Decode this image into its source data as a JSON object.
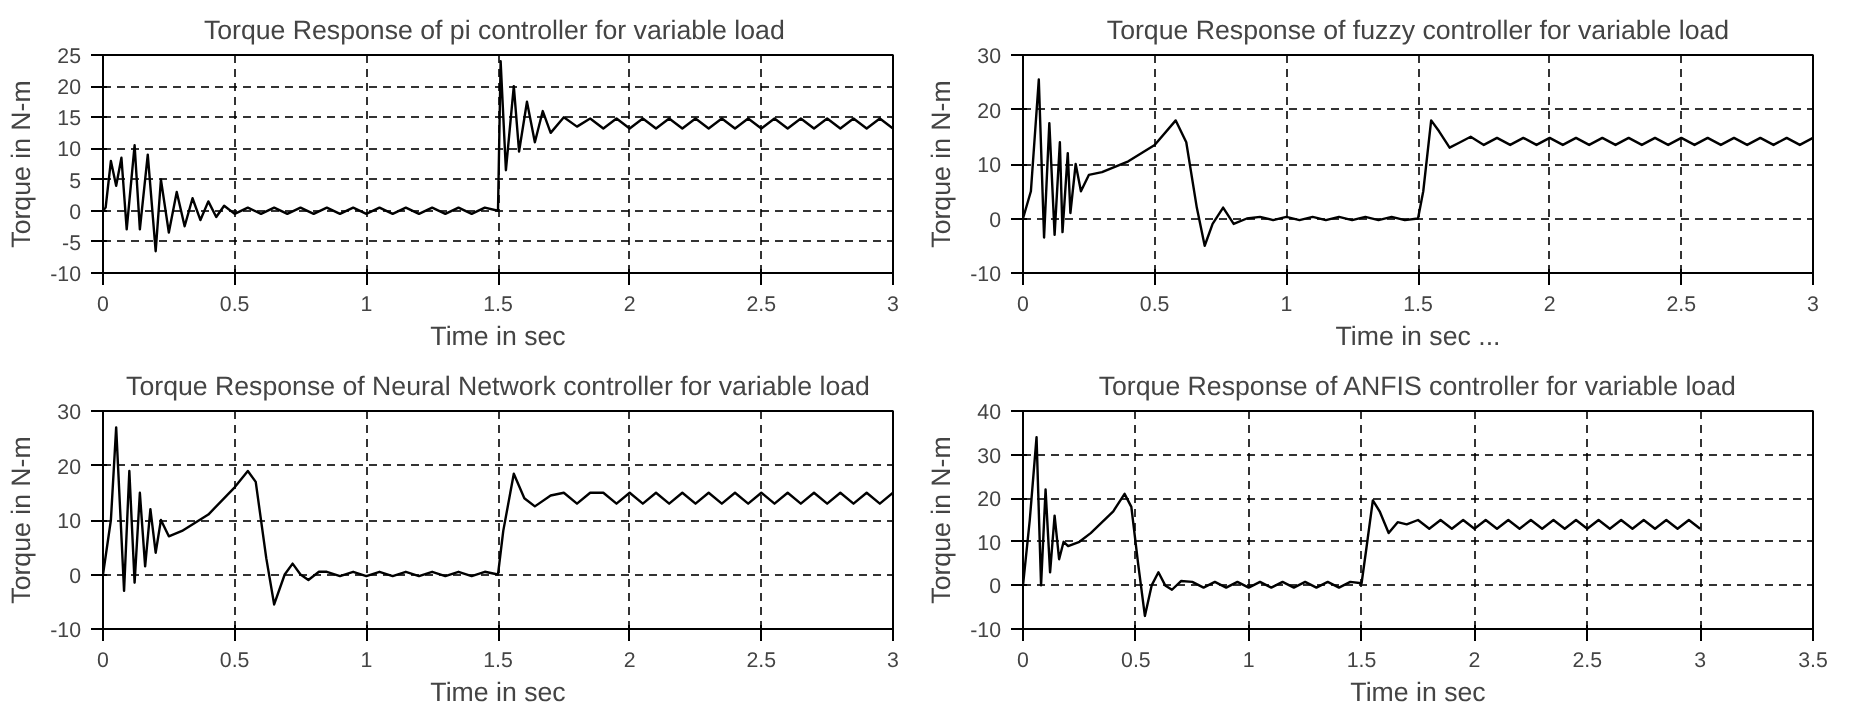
{
  "chart_data": [
    {
      "type": "line",
      "title": "Torque Response of pi controller  for variable load",
      "xlabel": "Time in sec",
      "ylabel": "Torque in N-m",
      "xlim": [
        0,
        3
      ],
      "ylim": [
        -10,
        25
      ],
      "xticks": [
        0,
        0.5,
        1,
        1.5,
        2,
        2.5,
        3
      ],
      "yticks": [
        -10,
        -5,
        0,
        5,
        10,
        15,
        20,
        25
      ],
      "grid": true,
      "line_style": "solid",
      "series": [
        {
          "color": "#000000",
          "x": [
            0,
            0.01,
            0.03,
            0.05,
            0.07,
            0.09,
            0.12,
            0.14,
            0.17,
            0.2,
            0.22,
            0.25,
            0.28,
            0.31,
            0.34,
            0.37,
            0.4,
            0.43,
            0.46,
            0.5,
            0.55,
            0.6,
            0.65,
            0.7,
            0.75,
            0.8,
            0.85,
            0.9,
            0.95,
            1.0,
            1.05,
            1.1,
            1.15,
            1.2,
            1.25,
            1.3,
            1.35,
            1.4,
            1.45,
            1.5,
            1.51,
            1.53,
            1.56,
            1.58,
            1.61,
            1.64,
            1.67,
            1.7,
            1.75,
            1.8,
            1.85,
            1.9,
            1.95,
            2.0,
            2.05,
            2.1,
            2.15,
            2.2,
            2.25,
            2.3,
            2.35,
            2.4,
            2.45,
            2.5,
            2.55,
            2.6,
            2.65,
            2.7,
            2.75,
            2.8,
            2.85,
            2.9,
            2.95,
            3.0
          ],
          "values": [
            0,
            0.5,
            8,
            4,
            8.5,
            -3,
            10.5,
            -3,
            9,
            -6.5,
            5,
            -3.5,
            3,
            -2.5,
            2,
            -1.5,
            1.5,
            -1,
            0.8,
            -0.5,
            0.5,
            -0.5,
            0.5,
            -0.5,
            0.5,
            -0.5,
            0.5,
            -0.5,
            0.5,
            -0.5,
            0.5,
            -0.5,
            0.5,
            -0.5,
            0.5,
            -0.5,
            0.5,
            -0.5,
            0.5,
            0,
            24,
            6.5,
            20,
            9.5,
            17.5,
            11,
            16,
            12.5,
            15,
            13.5,
            14.8,
            13.2,
            14.8,
            13.2,
            14.8,
            13.2,
            14.8,
            13.2,
            14.8,
            13.2,
            14.8,
            13.2,
            14.8,
            13.2,
            14.8,
            13.2,
            14.8,
            13.2,
            14.8,
            13.2,
            14.8,
            13.2,
            14.8,
            13.2
          ]
        }
      ]
    },
    {
      "type": "line",
      "title": "Torque Response of fuzzy controller for variable load",
      "xlabel": "Time in sec ...",
      "ylabel": "Torque in N-m",
      "xlim": [
        0,
        3
      ],
      "ylim": [
        -10,
        30
      ],
      "xticks": [
        0,
        0.5,
        1,
        1.5,
        2,
        2.5,
        3
      ],
      "yticks": [
        -10,
        0,
        10,
        20,
        30
      ],
      "grid": true,
      "line_style": "solid",
      "series": [
        {
          "color": "#000000",
          "x": [
            0,
            0.03,
            0.06,
            0.08,
            0.1,
            0.12,
            0.14,
            0.15,
            0.17,
            0.18,
            0.2,
            0.22,
            0.25,
            0.3,
            0.4,
            0.5,
            0.58,
            0.62,
            0.66,
            0.69,
            0.72,
            0.76,
            0.8,
            0.85,
            0.9,
            0.95,
            1.0,
            1.05,
            1.1,
            1.15,
            1.2,
            1.25,
            1.3,
            1.35,
            1.4,
            1.45,
            1.5,
            1.52,
            1.55,
            1.58,
            1.62,
            1.66,
            1.7,
            1.75,
            1.8,
            1.85,
            1.9,
            1.95,
            2.0,
            2.05,
            2.1,
            2.15,
            2.2,
            2.25,
            2.3,
            2.35,
            2.4,
            2.45,
            2.5,
            2.55,
            2.6,
            2.65,
            2.7,
            2.75,
            2.8,
            2.85,
            2.9,
            2.95,
            3.0
          ],
          "values": [
            0,
            5,
            25.5,
            -3.5,
            17.5,
            -3,
            14,
            -2.5,
            12,
            1,
            10,
            5,
            8,
            8.5,
            10.5,
            13.5,
            18,
            14,
            2,
            -5,
            -1,
            2,
            -1,
            0,
            0.3,
            -0.3,
            0.3,
            -0.3,
            0.3,
            -0.3,
            0.3,
            -0.3,
            0.3,
            -0.3,
            0.3,
            -0.3,
            0,
            5,
            18,
            16,
            13,
            14,
            15,
            13.5,
            14.8,
            13.5,
            14.8,
            13.5,
            14.8,
            13.5,
            14.8,
            13.5,
            14.8,
            13.5,
            14.8,
            13.5,
            14.8,
            13.5,
            14.8,
            13.5,
            14.8,
            13.5,
            14.8,
            13.5,
            14.8,
            13.5,
            14.8,
            13.5,
            14.8
          ]
        }
      ]
    },
    {
      "type": "line",
      "title": "Torque Response of Neural Network controller for variable load",
      "xlabel": "Time in sec",
      "ylabel": "Torque in N-m",
      "xlim": [
        0,
        3
      ],
      "ylim": [
        -10,
        30
      ],
      "xticks": [
        0,
        0.5,
        1,
        1.5,
        2,
        2.5,
        3
      ],
      "yticks": [
        -10,
        0,
        10,
        20,
        30
      ],
      "grid": true,
      "line_style": "solid",
      "series": [
        {
          "color": "#000000",
          "x": [
            0,
            0.03,
            0.05,
            0.08,
            0.1,
            0.12,
            0.14,
            0.16,
            0.18,
            0.2,
            0.22,
            0.25,
            0.3,
            0.4,
            0.5,
            0.55,
            0.58,
            0.62,
            0.65,
            0.69,
            0.72,
            0.75,
            0.78,
            0.82,
            0.85,
            0.9,
            0.95,
            1.0,
            1.05,
            1.1,
            1.15,
            1.2,
            1.25,
            1.3,
            1.35,
            1.4,
            1.45,
            1.5,
            1.52,
            1.56,
            1.6,
            1.64,
            1.7,
            1.75,
            1.8,
            1.85,
            1.9,
            1.95,
            2.0,
            2.05,
            2.1,
            2.15,
            2.2,
            2.25,
            2.3,
            2.35,
            2.4,
            2.45,
            2.5,
            2.55,
            2.6,
            2.65,
            2.7,
            2.75,
            2.8,
            2.85,
            2.9,
            2.95,
            3.0
          ],
          "values": [
            0,
            10,
            27,
            -3,
            19,
            -1.5,
            15,
            1.5,
            12,
            4,
            10,
            7,
            8,
            11,
            16,
            19,
            17,
            3,
            -5.5,
            0,
            2,
            0,
            -1,
            0.5,
            0.5,
            -0.3,
            0.5,
            -0.3,
            0.5,
            -0.3,
            0.5,
            -0.3,
            0.5,
            -0.3,
            0.5,
            -0.3,
            0.5,
            0,
            8,
            18.5,
            14,
            12.5,
            14.5,
            15,
            13,
            15,
            15,
            13,
            15,
            13,
            15,
            13,
            15,
            13,
            15,
            13,
            15,
            13,
            15,
            13,
            15,
            13,
            15,
            13,
            15,
            13,
            15,
            13,
            15
          ]
        }
      ]
    },
    {
      "type": "line",
      "title": "Torque Response of ANFIS controller for variable load",
      "xlabel": "Time in sec",
      "ylabel": "Torque in N-m",
      "xlim": [
        0,
        3.5
      ],
      "ylim": [
        -10,
        40
      ],
      "xticks": [
        0,
        0.5,
        1,
        1.5,
        2,
        2.5,
        3,
        3.5
      ],
      "yticks": [
        -10,
        0,
        10,
        20,
        30,
        40
      ],
      "grid": true,
      "line_style": "solid",
      "series": [
        {
          "color": "#000000",
          "x": [
            0,
            0.03,
            0.06,
            0.08,
            0.1,
            0.12,
            0.14,
            0.16,
            0.18,
            0.2,
            0.25,
            0.3,
            0.4,
            0.45,
            0.48,
            0.51,
            0.54,
            0.57,
            0.6,
            0.63,
            0.66,
            0.7,
            0.75,
            0.8,
            0.85,
            0.9,
            0.95,
            1.0,
            1.05,
            1.1,
            1.15,
            1.2,
            1.25,
            1.3,
            1.35,
            1.4,
            1.45,
            1.5,
            1.52,
            1.55,
            1.58,
            1.62,
            1.66,
            1.7,
            1.75,
            1.8,
            1.85,
            1.9,
            1.95,
            2.0,
            2.05,
            2.1,
            2.15,
            2.2,
            2.25,
            2.3,
            2.35,
            2.4,
            2.45,
            2.5,
            2.55,
            2.6,
            2.65,
            2.7,
            2.75,
            2.8,
            2.85,
            2.9,
            2.95,
            3.0
          ],
          "values": [
            0,
            15,
            34,
            0,
            22,
            3,
            16,
            6,
            10,
            9,
            10,
            12,
            17,
            21,
            18,
            5,
            -7,
            0,
            3,
            0,
            -1,
            1,
            0.8,
            -0.5,
            0.8,
            -0.5,
            0.8,
            -0.5,
            0.8,
            -0.5,
            0.8,
            -0.5,
            0.8,
            -0.5,
            0.8,
            -0.5,
            0.8,
            0.5,
            8,
            19.5,
            17,
            12,
            14.5,
            14,
            15,
            13,
            15,
            13,
            15,
            13,
            15,
            13,
            15,
            13,
            15,
            13,
            15,
            13,
            15,
            13,
            15,
            13,
            15,
            13,
            15,
            13,
            15,
            13,
            15,
            13
          ]
        }
      ]
    }
  ]
}
